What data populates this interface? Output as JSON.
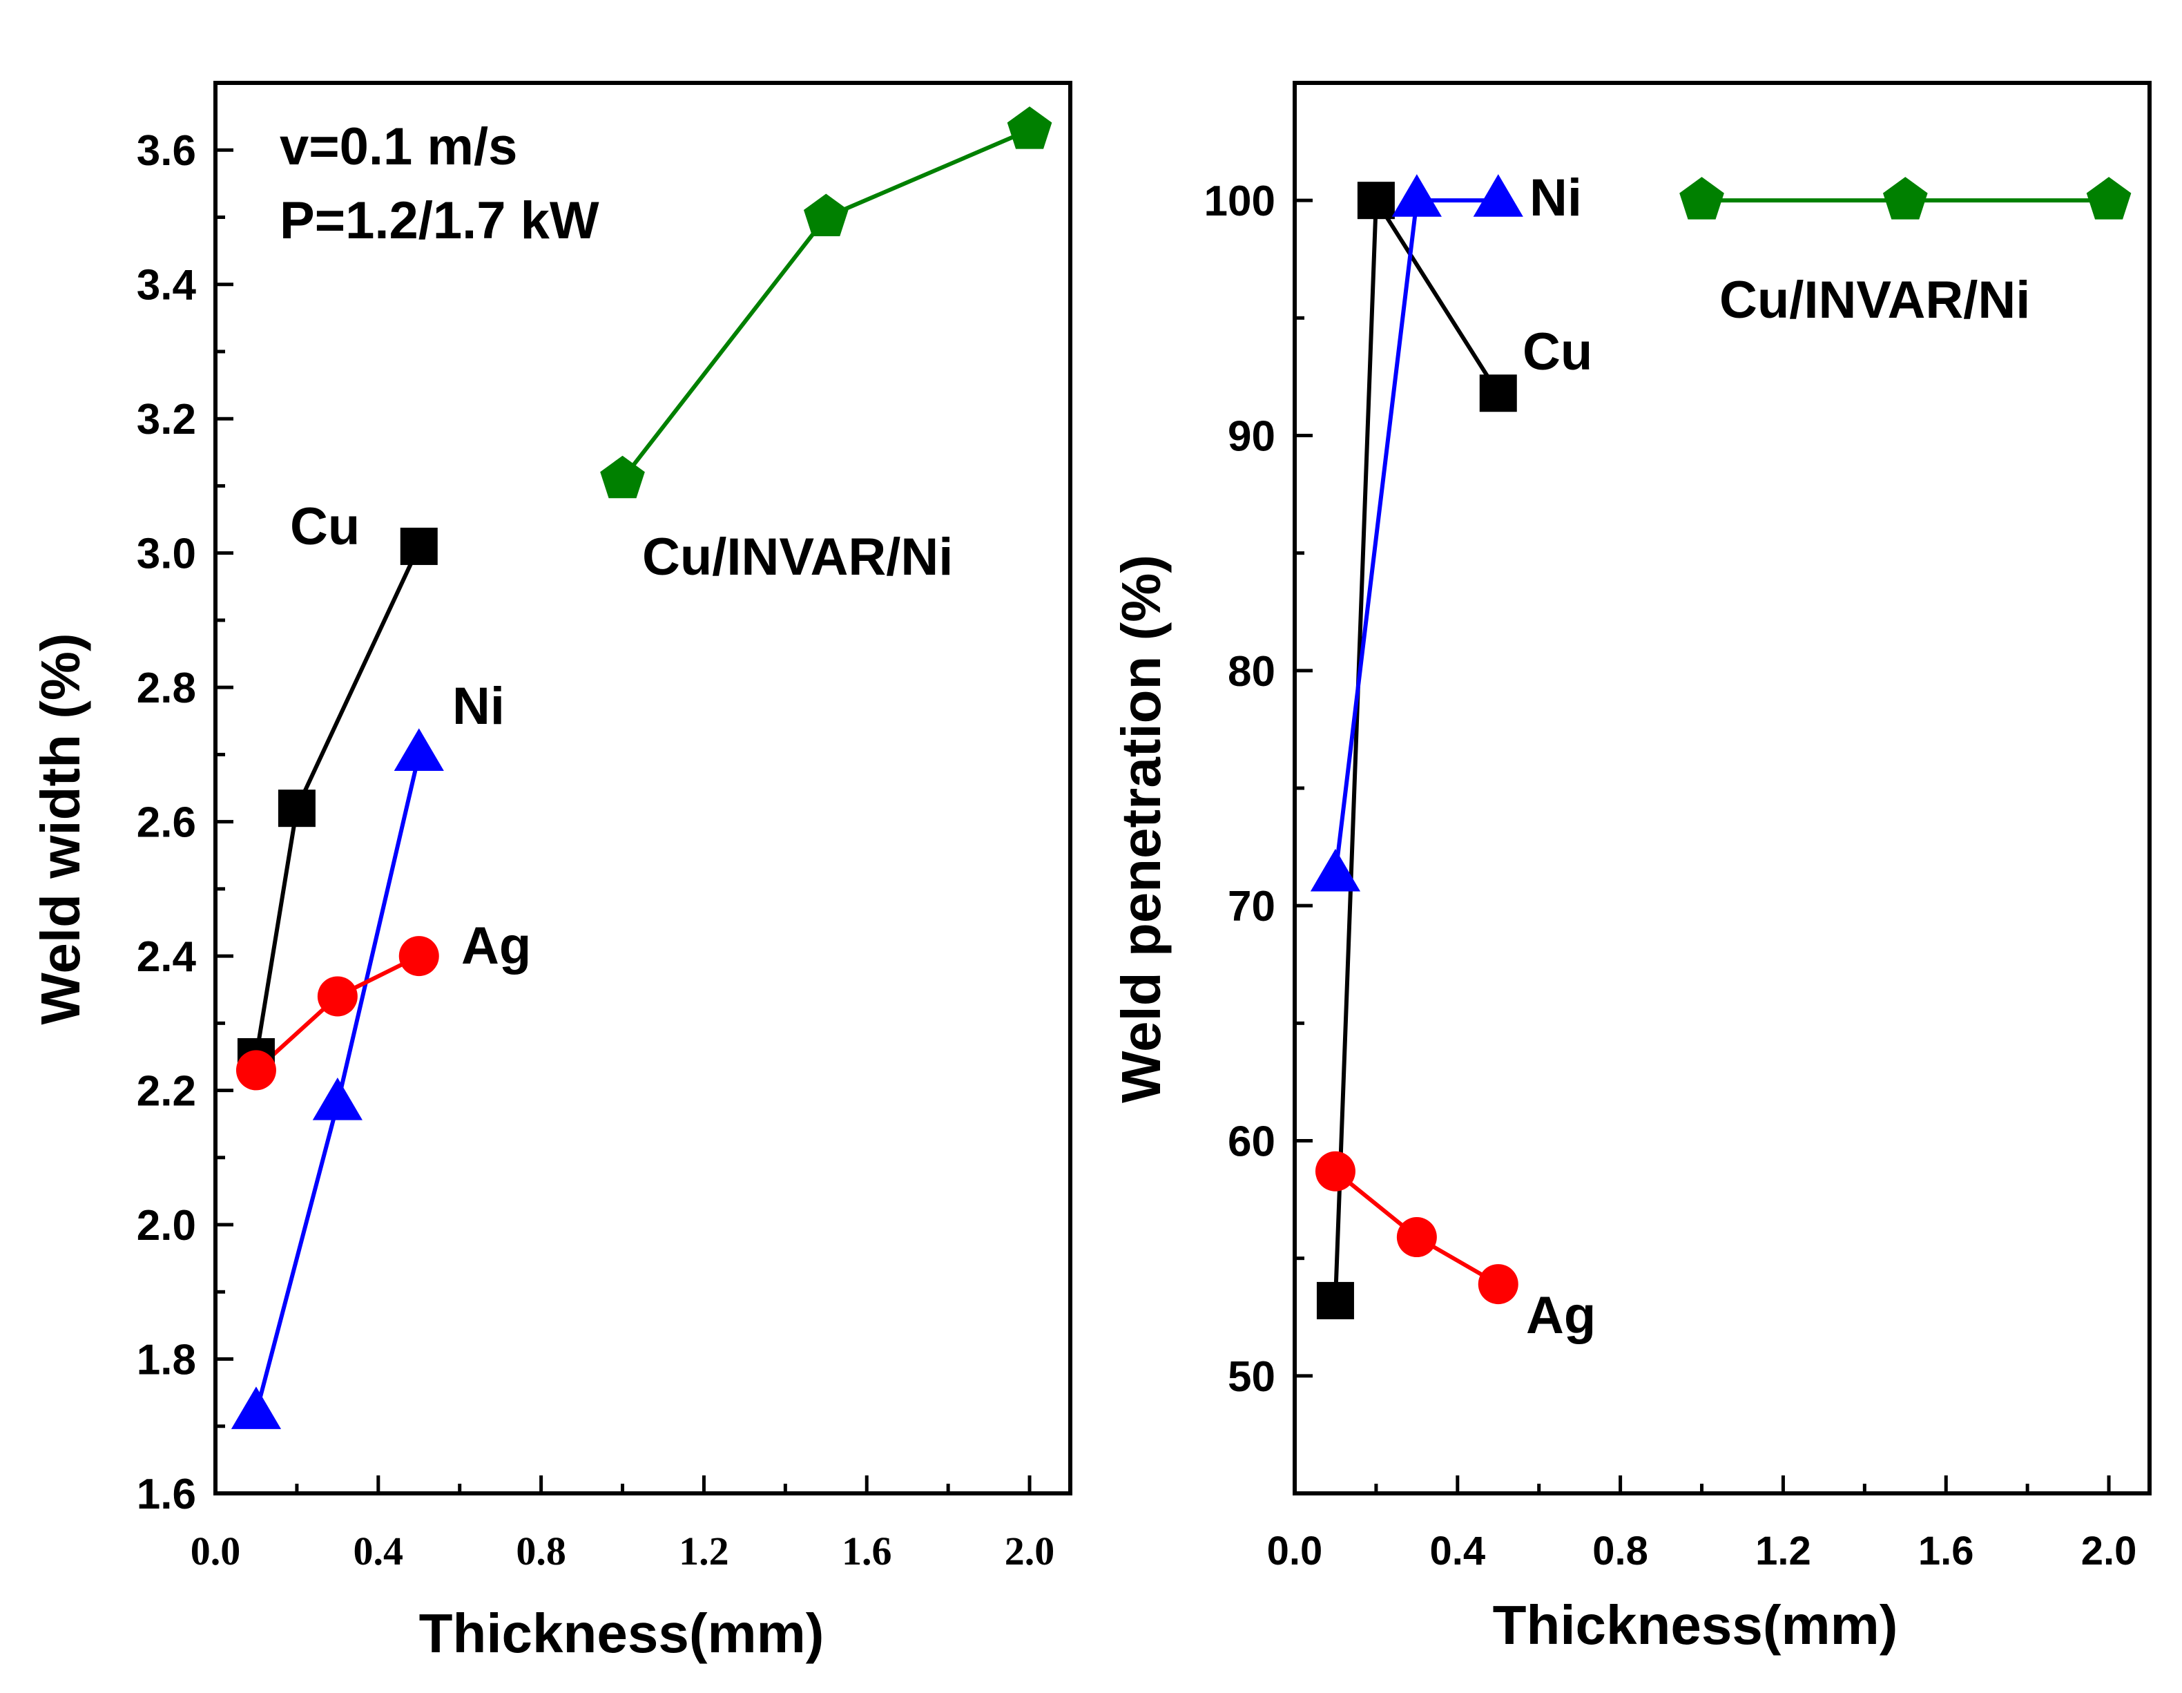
{
  "chart_data": [
    {
      "type": "line",
      "panel": "left",
      "xlabel": "Thickness(mm)",
      "ylabel": "Weld width (%)",
      "xlim": [
        0.0,
        2.1
      ],
      "ylim": [
        1.6,
        3.7
      ],
      "xticks": [
        "0.0",
        "0.4",
        "0.8",
        "1.2",
        "1.6",
        "2.0"
      ],
      "yticks": [
        "1.6",
        "1.8",
        "2.0",
        "2.2",
        "2.4",
        "2.6",
        "2.8",
        "3.0",
        "3.2",
        "3.4",
        "3.6"
      ],
      "annotations": [
        "v=0.1 m/s",
        "P=1.2/1.7 kW"
      ],
      "series": [
        {
          "name": "Cu",
          "color": "#000000",
          "marker": "square",
          "x": [
            0.1,
            0.2,
            0.5
          ],
          "y": [
            2.25,
            2.62,
            3.01
          ]
        },
        {
          "name": "Ni",
          "color": "#0000ff",
          "marker": "triangle",
          "x": [
            0.1,
            0.3,
            0.5
          ],
          "y": [
            1.72,
            2.18,
            2.7
          ]
        },
        {
          "name": "Ag",
          "color": "#ff0000",
          "marker": "circle",
          "x": [
            0.1,
            0.3,
            0.5
          ],
          "y": [
            2.23,
            2.34,
            2.4
          ]
        },
        {
          "name": "Cu/INVAR/Ni",
          "color": "#008000",
          "marker": "pentagon",
          "x": [
            1.0,
            1.5,
            2.0
          ],
          "y": [
            3.11,
            3.5,
            3.63
          ]
        }
      ]
    },
    {
      "type": "line",
      "panel": "right",
      "xlabel": "Thickness(mm)",
      "ylabel": "Weld penetration (%)",
      "xlim": [
        0.0,
        2.1
      ],
      "ylim": [
        45,
        105
      ],
      "xticks": [
        "0.0",
        "0.4",
        "0.8",
        "1.2",
        "1.6",
        "2.0"
      ],
      "yticks": [
        "50",
        "60",
        "70",
        "80",
        "90",
        "100"
      ],
      "series": [
        {
          "name": "Cu",
          "color": "#000000",
          "marker": "square",
          "x": [
            0.1,
            0.2,
            0.5
          ],
          "y": [
            53.2,
            100,
            91.8
          ]
        },
        {
          "name": "Ni",
          "color": "#0000ff",
          "marker": "triangle",
          "x": [
            0.1,
            0.3,
            0.5
          ],
          "y": [
            71.3,
            100,
            100
          ]
        },
        {
          "name": "Ag",
          "color": "#ff0000",
          "marker": "circle",
          "x": [
            0.1,
            0.3,
            0.5
          ],
          "y": [
            58.7,
            55.9,
            53.9
          ]
        },
        {
          "name": "Cu/INVAR/Ni",
          "color": "#008000",
          "marker": "pentagon",
          "x": [
            1.0,
            1.5,
            2.0
          ],
          "y": [
            100,
            100,
            100
          ]
        }
      ]
    }
  ]
}
